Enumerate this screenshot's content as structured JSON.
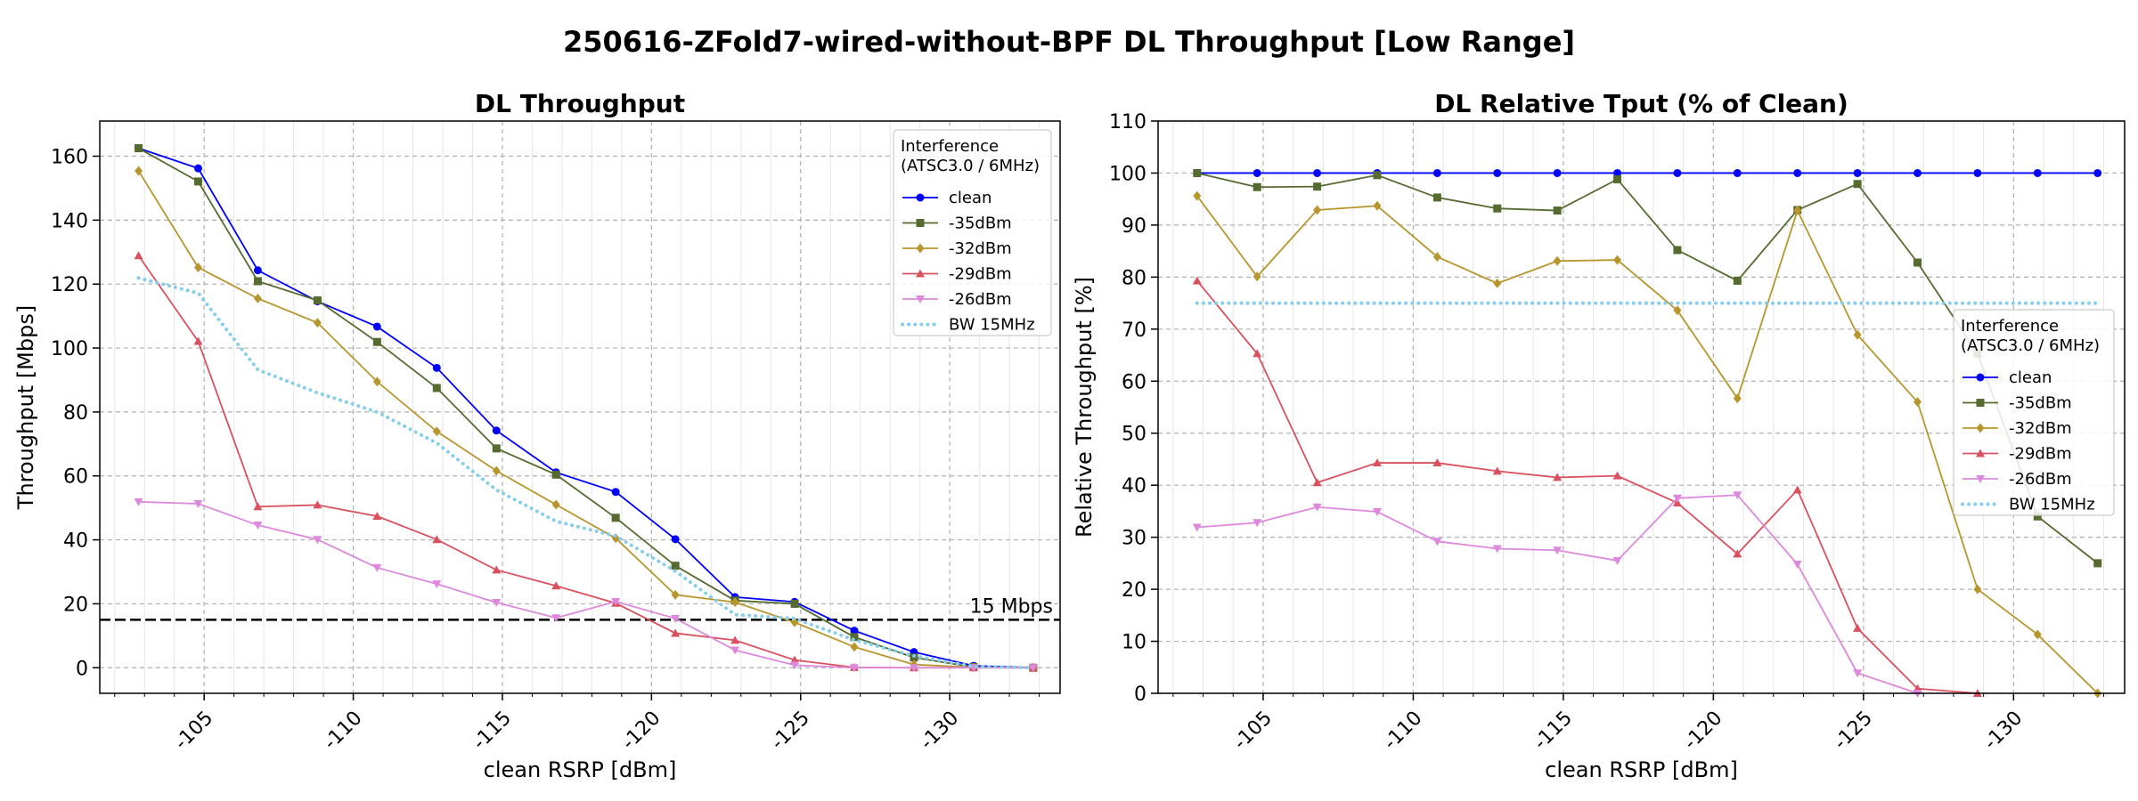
{
  "page_title": "250616-ZFold7-wired-without-BPF DL Throughput [Low Range]",
  "colors": {
    "clean": "#0000ff",
    "-35dBm": "#556b2f",
    "-32dBm": "#b8962e",
    "-29dBm": "#d9515f",
    "-26dBm": "#dd88dd",
    "BW 15MHz": "#87ceeb",
    "threshold": "#000000"
  },
  "chart_data": [
    {
      "type": "line",
      "title": "DL Throughput",
      "xlabel": "clean RSRP [dBm]",
      "ylabel": "Throughput [Mbps]",
      "x_axis_reversed": true,
      "xlim": [
        -101.5,
        -133.7
      ],
      "ylim": [
        -8,
        171
      ],
      "xticks": [
        -105,
        -110,
        -115,
        -120,
        -125,
        -130
      ],
      "xtick_labels": [
        "-105",
        "-110",
        "-115",
        "-120",
        "-125",
        "-130"
      ],
      "yticks": [
        0,
        20,
        40,
        60,
        80,
        100,
        120,
        140,
        160
      ],
      "ytick_labels": [
        "0",
        "20",
        "40",
        "60",
        "80",
        "100",
        "120",
        "140",
        "160"
      ],
      "grid": true,
      "legend_title": "Interference\n(ATSC3.0 / 6MHz)",
      "legend_position": "upper right",
      "x": [
        -102.8,
        -104.8,
        -106.8,
        -108.8,
        -110.8,
        -112.8,
        -114.8,
        -116.8,
        -118.8,
        -120.8,
        -122.8,
        -124.8,
        -126.8,
        -128.8,
        -130.8,
        -132.8
      ],
      "series": [
        {
          "name": "clean",
          "marker": "circle",
          "values": [
            162.5,
            156.2,
            124.3,
            114.6,
            106.7,
            93.8,
            74.2,
            61.1,
            55.0,
            40.2,
            22.1,
            20.6,
            11.6,
            4.9,
            0.6,
            0.0
          ]
        },
        {
          "name": "-35dBm",
          "marker": "square",
          "values": [
            162.5,
            152.1,
            120.9,
            114.9,
            101.9,
            87.5,
            68.6,
            60.4,
            46.9,
            31.9,
            21.0,
            20.0,
            9.6,
            3.2,
            0.2,
            0.0
          ]
        },
        {
          "name": "-32dBm",
          "marker": "diamond",
          "values": [
            155.4,
            125.2,
            115.5,
            107.9,
            89.5,
            73.9,
            61.6,
            51.0,
            40.5,
            22.8,
            20.5,
            14.2,
            6.5,
            1.0,
            0.1,
            0.0
          ]
        },
        {
          "name": "-29dBm",
          "marker": "triangle-up",
          "values": [
            128.9,
            102.1,
            50.4,
            50.9,
            47.4,
            40.1,
            30.6,
            25.6,
            20.2,
            10.8,
            8.6,
            2.4,
            0.1,
            0.0,
            0.0,
            0.0
          ]
        },
        {
          "name": "-26dBm",
          "marker": "triangle-down",
          "values": [
            51.9,
            51.3,
            44.6,
            40.1,
            31.3,
            26.2,
            20.4,
            15.6,
            20.7,
            15.4,
            5.5,
            0.8,
            0.0,
            0.0,
            0.0,
            0.0
          ]
        },
        {
          "name": "BW 15MHz",
          "marker": "none",
          "dotted": true,
          "values": [
            121.9,
            117.2,
            93.2,
            86.0,
            80.0,
            70.3,
            55.6,
            45.8,
            41.2,
            30.2,
            16.6,
            15.4,
            8.7,
            3.7,
            0.4,
            0.0
          ]
        }
      ],
      "threshold": {
        "value": 15,
        "label": "15 Mbps"
      }
    },
    {
      "type": "line",
      "title": "DL Relative Tput (% of Clean)",
      "xlabel": "clean RSRP [dBm]",
      "ylabel": "Relative Throughput [%]",
      "x_axis_reversed": true,
      "xlim": [
        -101.5,
        -133.7
      ],
      "ylim": [
        0,
        110
      ],
      "xticks": [
        -105,
        -110,
        -115,
        -120,
        -125,
        -130
      ],
      "xtick_labels": [
        "-105",
        "-110",
        "-115",
        "-120",
        "-125",
        "-130"
      ],
      "yticks": [
        0,
        10,
        20,
        30,
        40,
        50,
        60,
        70,
        80,
        90,
        100,
        110
      ],
      "ytick_labels": [
        "0",
        "10",
        "20",
        "30",
        "40",
        "50",
        "60",
        "70",
        "80",
        "90",
        "100",
        "110"
      ],
      "grid": true,
      "legend_title": "Interference\n(ATSC3.0 / 6MHz)",
      "legend_position": "center right",
      "x": [
        -102.8,
        -104.8,
        -106.8,
        -108.8,
        -110.8,
        -112.8,
        -114.8,
        -116.8,
        -118.8,
        -120.8,
        -122.8,
        -124.8,
        -126.8,
        -128.8,
        -130.8,
        -132.8
      ],
      "series": [
        {
          "name": "clean",
          "marker": "circle",
          "values": [
            100,
            100,
            100,
            100,
            100,
            100,
            100,
            100,
            100,
            100,
            100,
            100,
            100,
            100,
            100,
            100
          ]
        },
        {
          "name": "-35dBm",
          "marker": "square",
          "values": [
            100,
            97.3,
            97.4,
            99.6,
            95.3,
            93.2,
            92.8,
            98.8,
            85.2,
            79.3,
            92.9,
            97.9,
            82.8,
            65.3,
            34.0,
            25.0
          ]
        },
        {
          "name": "-32dBm",
          "marker": "diamond",
          "values": [
            95.6,
            80.1,
            92.9,
            93.7,
            83.9,
            78.8,
            83.1,
            83.3,
            73.6,
            56.7,
            92.8,
            68.9,
            56.0,
            20.0,
            11.3,
            0.0
          ]
        },
        {
          "name": "-29dBm",
          "marker": "triangle-up",
          "values": [
            79.3,
            65.3,
            40.5,
            44.3,
            44.3,
            42.7,
            41.5,
            41.8,
            36.6,
            26.8,
            39.1,
            12.5,
            0.9,
            0.0,
            null,
            null
          ]
        },
        {
          "name": "-26dBm",
          "marker": "triangle-down",
          "values": [
            31.9,
            32.8,
            35.8,
            34.9,
            29.2,
            27.8,
            27.5,
            25.5,
            37.5,
            38.1,
            24.8,
            3.9,
            0.0,
            null,
            null,
            null
          ]
        },
        {
          "name": "BW 15MHz",
          "marker": "none",
          "dotted": true,
          "values": [
            75,
            75,
            75,
            75,
            75,
            75,
            75,
            75,
            75,
            75,
            75,
            75,
            75,
            75,
            75,
            75
          ]
        }
      ]
    }
  ]
}
